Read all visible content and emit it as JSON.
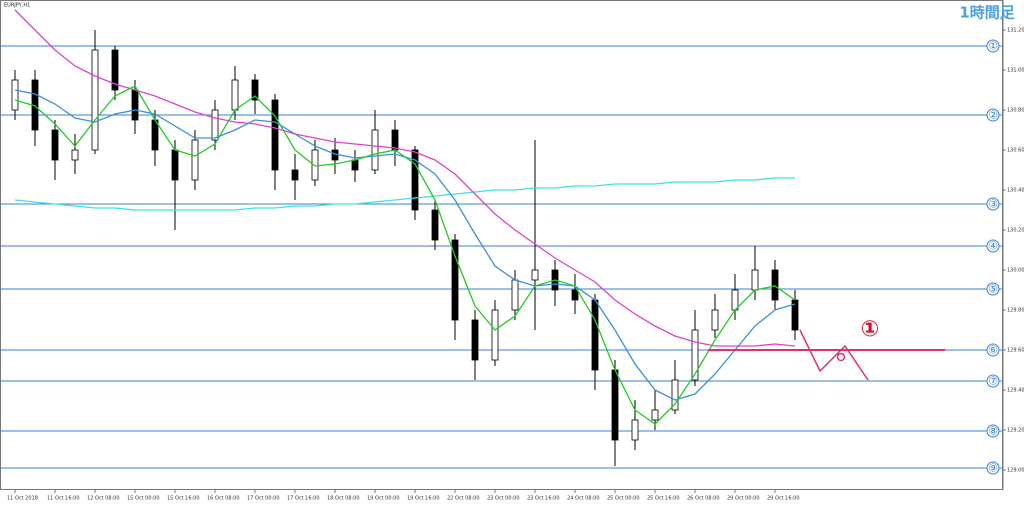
{
  "chart_data": {
    "type": "candlestick",
    "symbol": "EURJPY,H1",
    "title": "1時間足",
    "annotation": "①",
    "categories": [
      "11 Oct 2018",
      null,
      "11 Oct 16:00",
      null,
      "12 Oct 08:00",
      null,
      "15 Oct 00:00",
      null,
      "15 Oct 16:00",
      null,
      "16 Oct 08:00",
      null,
      "17 Oct 00:00",
      null,
      "17 Oct 16:00",
      null,
      "18 Oct 08:00",
      null,
      "19 Oct 00:00",
      null,
      "19 Oct 16:00",
      null,
      "22 Oct 08:00",
      null,
      "23 Oct 00:00",
      null,
      "23 Oct 16:00",
      null,
      "24 Oct 08:00",
      null,
      "25 Oct 00:00",
      null,
      "25 Oct 16:00",
      null,
      "26 Oct 08:00",
      null,
      "29 Oct 00:00",
      null,
      "29 Oct 16:00",
      null
    ],
    "open": [
      130.8,
      130.95,
      130.7,
      130.55,
      130.6,
      131.1,
      130.9,
      130.75,
      130.6,
      130.45,
      130.65,
      130.8,
      130.95,
      130.85,
      130.5,
      130.45,
      130.6,
      130.55,
      130.5,
      130.7,
      130.6,
      130.3,
      130.15,
      129.75,
      129.55,
      129.8,
      129.95,
      130.0,
      129.9,
      129.85,
      129.5,
      129.15,
      129.25,
      129.3,
      129.45,
      129.7,
      129.8,
      129.9,
      130.0,
      129.85
    ],
    "high": [
      131.0,
      131.0,
      130.75,
      130.68,
      131.2,
      131.12,
      130.95,
      130.8,
      130.65,
      130.7,
      130.85,
      131.02,
      130.98,
      130.88,
      130.58,
      130.65,
      130.66,
      130.6,
      130.8,
      130.75,
      130.62,
      130.35,
      130.18,
      129.8,
      129.85,
      130.0,
      130.65,
      130.05,
      129.98,
      129.88,
      129.55,
      129.35,
      129.4,
      129.55,
      129.8,
      129.88,
      129.98,
      130.12,
      130.05,
      129.9
    ],
    "low": [
      130.75,
      130.62,
      130.45,
      130.48,
      130.58,
      130.85,
      130.68,
      130.52,
      130.2,
      130.4,
      130.6,
      130.75,
      130.78,
      130.4,
      130.35,
      130.42,
      130.48,
      130.44,
      130.48,
      130.52,
      130.25,
      130.1,
      129.65,
      129.45,
      129.52,
      129.75,
      129.7,
      129.82,
      129.78,
      129.4,
      129.02,
      129.1,
      129.2,
      129.28,
      129.42,
      129.66,
      129.75,
      129.85,
      129.8,
      129.65
    ],
    "close": [
      130.95,
      130.7,
      130.55,
      130.6,
      131.1,
      130.9,
      130.75,
      130.6,
      130.45,
      130.65,
      130.8,
      130.95,
      130.85,
      130.5,
      130.45,
      130.6,
      130.55,
      130.5,
      130.7,
      130.6,
      130.3,
      130.15,
      129.75,
      129.55,
      129.8,
      129.95,
      130.0,
      129.9,
      129.85,
      129.5,
      129.15,
      129.25,
      129.3,
      129.45,
      129.7,
      129.8,
      129.9,
      130.0,
      129.85,
      129.7
    ],
    "series": [
      {
        "color": "#40e0e0",
        "values": [
          130.35,
          130.34,
          130.33,
          130.32,
          130.31,
          130.31,
          130.3,
          130.3,
          130.3,
          130.3,
          130.3,
          130.3,
          130.31,
          130.31,
          130.32,
          130.32,
          130.33,
          130.33,
          130.34,
          130.35,
          130.36,
          130.37,
          130.38,
          130.39,
          130.4,
          130.4,
          130.41,
          130.41,
          130.42,
          130.42,
          130.43,
          130.43,
          130.43,
          130.44,
          130.44,
          130.44,
          130.45,
          130.45,
          130.46,
          130.46
        ]
      },
      {
        "color": "#e040d0",
        "values": [
          131.3,
          131.2,
          131.1,
          131.02,
          130.97,
          130.93,
          130.9,
          130.87,
          130.83,
          130.79,
          130.76,
          130.74,
          130.73,
          130.71,
          130.68,
          130.66,
          130.64,
          130.63,
          130.62,
          130.61,
          130.59,
          130.55,
          130.48,
          130.38,
          130.28,
          130.2,
          130.13,
          130.06,
          130.0,
          129.94,
          129.85,
          129.78,
          129.72,
          129.67,
          129.64,
          129.62,
          129.62,
          129.62,
          129.63,
          129.62
        ]
      },
      {
        "color": "#3a8fe0",
        "values": [
          130.9,
          130.88,
          130.83,
          130.76,
          130.74,
          130.78,
          130.8,
          130.78,
          130.72,
          130.66,
          130.66,
          130.7,
          130.75,
          130.74,
          130.68,
          130.62,
          130.58,
          130.56,
          130.57,
          130.58,
          130.55,
          130.48,
          130.35,
          130.18,
          130.02,
          129.95,
          129.92,
          129.93,
          129.92,
          129.85,
          129.7,
          129.53,
          129.4,
          129.35,
          129.38,
          129.48,
          129.6,
          129.72,
          129.8,
          129.83
        ]
      },
      {
        "color": "#22cc22",
        "values": [
          130.85,
          130.82,
          130.73,
          130.62,
          130.75,
          130.87,
          130.92,
          130.75,
          130.6,
          130.57,
          130.63,
          130.8,
          130.87,
          130.77,
          130.6,
          130.52,
          130.53,
          130.55,
          130.58,
          130.6,
          130.53,
          130.35,
          130.07,
          129.82,
          129.7,
          129.77,
          129.92,
          129.95,
          129.92,
          129.75,
          129.5,
          129.3,
          129.23,
          129.33,
          129.48,
          129.65,
          129.8,
          129.9,
          129.92,
          129.85
        ]
      }
    ],
    "levels": [
      {
        "label": "①",
        "value": 131.12
      },
      {
        "label": "②",
        "value": 130.775
      },
      {
        "label": "③",
        "value": 130.33
      },
      {
        "label": "④",
        "value": 130.12
      },
      {
        "label": "⑤",
        "value": 129.905
      },
      {
        "label": "⑥",
        "value": 129.6
      },
      {
        "label": "⑦",
        "value": 129.445
      },
      {
        "label": "⑧",
        "value": 129.195
      },
      {
        "label": "⑨",
        "value": 129.01
      }
    ],
    "level_color": "#3a7fe0",
    "ylim": [
      128.9,
      131.35
    ],
    "yticks": [
      {
        "value": 129.0,
        "label": "129.000"
      },
      {
        "value": 129.2,
        "label": "129.200"
      },
      {
        "value": 129.4,
        "label": "129.400"
      },
      {
        "value": 129.6,
        "label": "129.600"
      },
      {
        "value": 129.8,
        "label": "129.800"
      },
      {
        "value": 130.0,
        "label": "130.000"
      },
      {
        "value": 130.2,
        "label": "130.200"
      },
      {
        "value": 130.4,
        "label": "130.400"
      },
      {
        "value": 130.6,
        "label": "130.600"
      },
      {
        "value": 130.8,
        "label": "130.800"
      },
      {
        "value": 131.0,
        "label": "131.000"
      },
      {
        "value": 131.2,
        "label": "131.200"
      }
    ]
  }
}
